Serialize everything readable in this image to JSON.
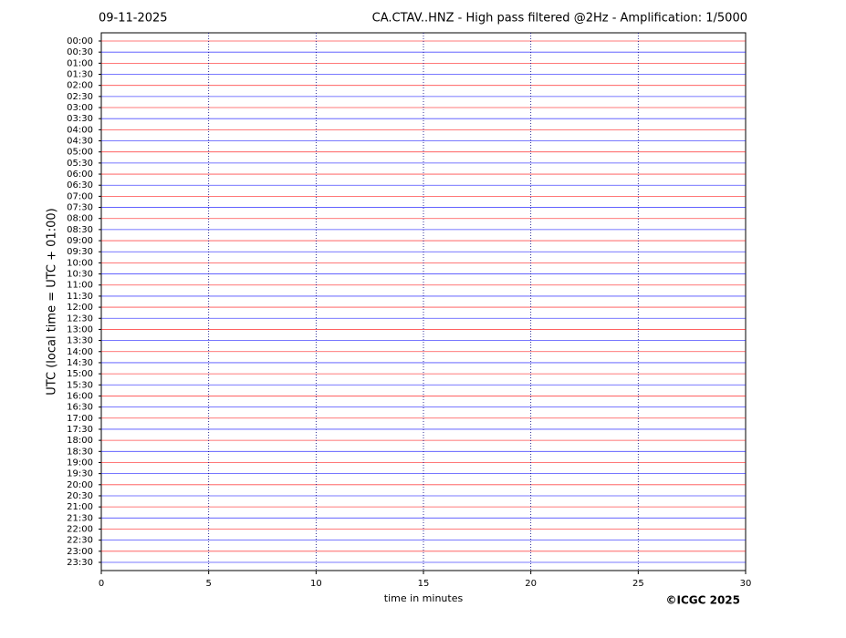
{
  "chart_data": {
    "type": "helicorder",
    "date": "09-11-2025",
    "title": "CA.CTAV..HNZ - High pass filtered @2Hz - Amplification: 1/5000",
    "ylabel": "UTC (local time = UTC + 01:00)",
    "xlabel": "time in minutes",
    "credit": "©ICGC 2025",
    "categories": [
      "00:00",
      "00:30",
      "01:00",
      "01:30",
      "02:00",
      "02:30",
      "03:00",
      "03:30",
      "04:00",
      "04:30",
      "05:00",
      "05:30",
      "06:00",
      "06:30",
      "07:00",
      "07:30",
      "08:00",
      "08:30",
      "09:00",
      "09:30",
      "10:00",
      "10:30",
      "11:00",
      "11:30",
      "12:00",
      "12:30",
      "13:00",
      "13:30",
      "14:00",
      "14:30",
      "15:00",
      "15:30",
      "16:00",
      "16:30",
      "17:00",
      "17:30",
      "18:00",
      "18:30",
      "19:00",
      "19:30",
      "20:00",
      "20:30",
      "21:00",
      "21:30",
      "22:00",
      "22:30",
      "23:00",
      "23:30"
    ],
    "xlim": [
      0,
      30
    ],
    "xticks": [
      0,
      5,
      10,
      15,
      20,
      25,
      30
    ],
    "grid": true,
    "colors": [
      "#ff0000",
      "#0000ff"
    ]
  }
}
